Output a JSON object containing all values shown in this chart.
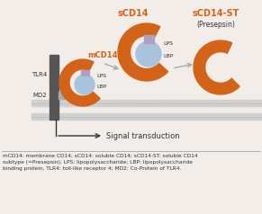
{
  "bg_color": "#f2ede8",
  "membrane_color": "#cccccc",
  "cd14_orange": "#d4631a",
  "lps_lbp_blue": "#a8c4dc",
  "lps_purple": "#b0a0c0",
  "tlr4_color": "#555555",
  "md2_color": "#aaaaaa",
  "arrow_color": "#aaaaaa",
  "text_black": "#333333",
  "caption": "mCD14: membrane CD14; sCD14: soluble CD14; sCD14-ST: soluble CD14\nsubtype (=Presepsin); LPS: lipopolysaccharide; LBP: lipopolysaccharide\nbinding protein, TLR4: toll-like receptor 4; MD2: Co-Protein of TLR4.",
  "signal_text": "Signal transduction"
}
